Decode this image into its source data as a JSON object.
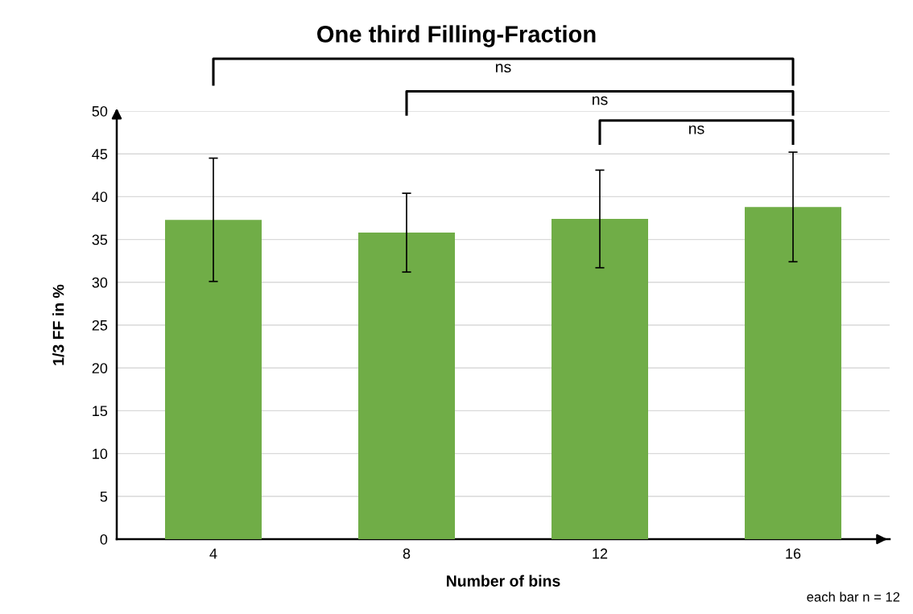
{
  "chart_data": {
    "type": "bar",
    "title": "One third Filling-Fraction",
    "xlabel": "Number of bins",
    "ylabel": "1/3 FF in %",
    "categories": [
      "4",
      "8",
      "12",
      "16"
    ],
    "values": [
      37.3,
      35.8,
      37.4,
      38.8
    ],
    "errors": [
      7.2,
      4.6,
      5.7,
      6.4
    ],
    "color": "#70ad47",
    "ylim": [
      0,
      50
    ],
    "yticks": [
      0,
      5,
      10,
      15,
      20,
      25,
      30,
      35,
      40,
      45,
      50
    ],
    "grid": "y",
    "annotations": [
      "ns",
      "ns",
      "ns",
      "each bar n = 12"
    ]
  }
}
